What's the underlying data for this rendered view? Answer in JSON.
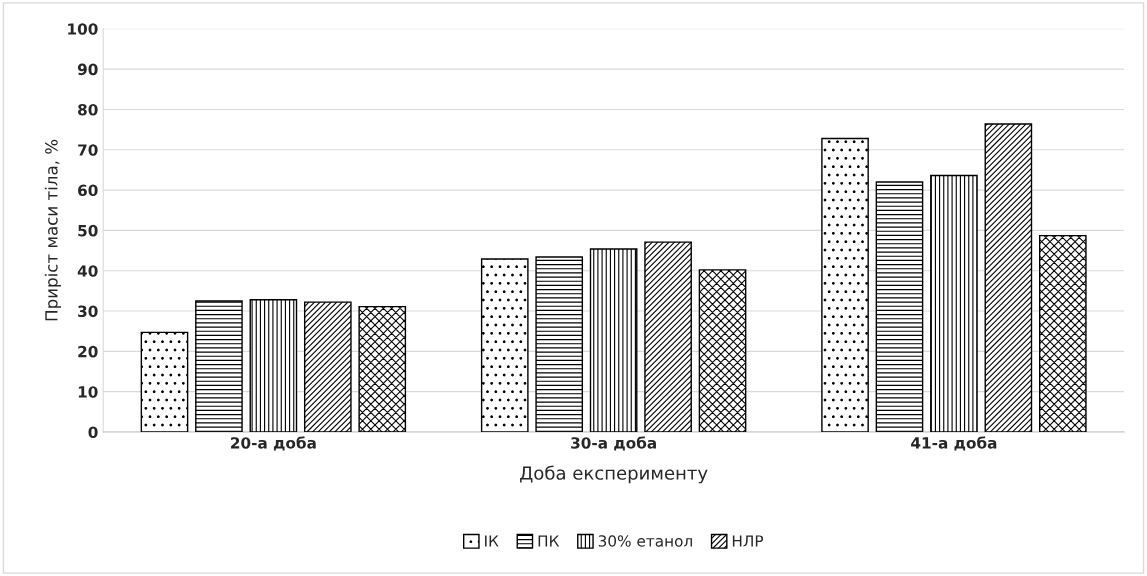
{
  "chart_data": {
    "type": "bar",
    "xlabel": "Доба експерименту",
    "ylabel": "Приріст маси тіла, %",
    "categories": [
      "20-а доба",
      "30-а доба",
      "41-а доба"
    ],
    "series": [
      {
        "name": "ІК",
        "color": "#000000",
        "values": [
          24.7,
          42.9,
          72.8
        ]
      },
      {
        "name": "ПК",
        "color": "#000000",
        "values": [
          32.5,
          43.4,
          62.0
        ]
      },
      {
        "name": "30% етанол",
        "color": "#000000",
        "values": [
          32.8,
          45.4,
          63.6
        ]
      },
      {
        "name": "НЛР",
        "color": "#000000",
        "values": [
          32.2,
          47.1,
          76.4
        ]
      },
      {
        "color": "#000000",
        "values": [
          31.1,
          40.2,
          48.7
        ]
      }
    ],
    "ylim": [
      0,
      100
    ],
    "yticks": [
      0,
      10,
      20,
      30,
      40,
      50,
      60,
      70,
      80,
      90,
      100
    ],
    "grid": "y",
    "legend": "bottom"
  }
}
